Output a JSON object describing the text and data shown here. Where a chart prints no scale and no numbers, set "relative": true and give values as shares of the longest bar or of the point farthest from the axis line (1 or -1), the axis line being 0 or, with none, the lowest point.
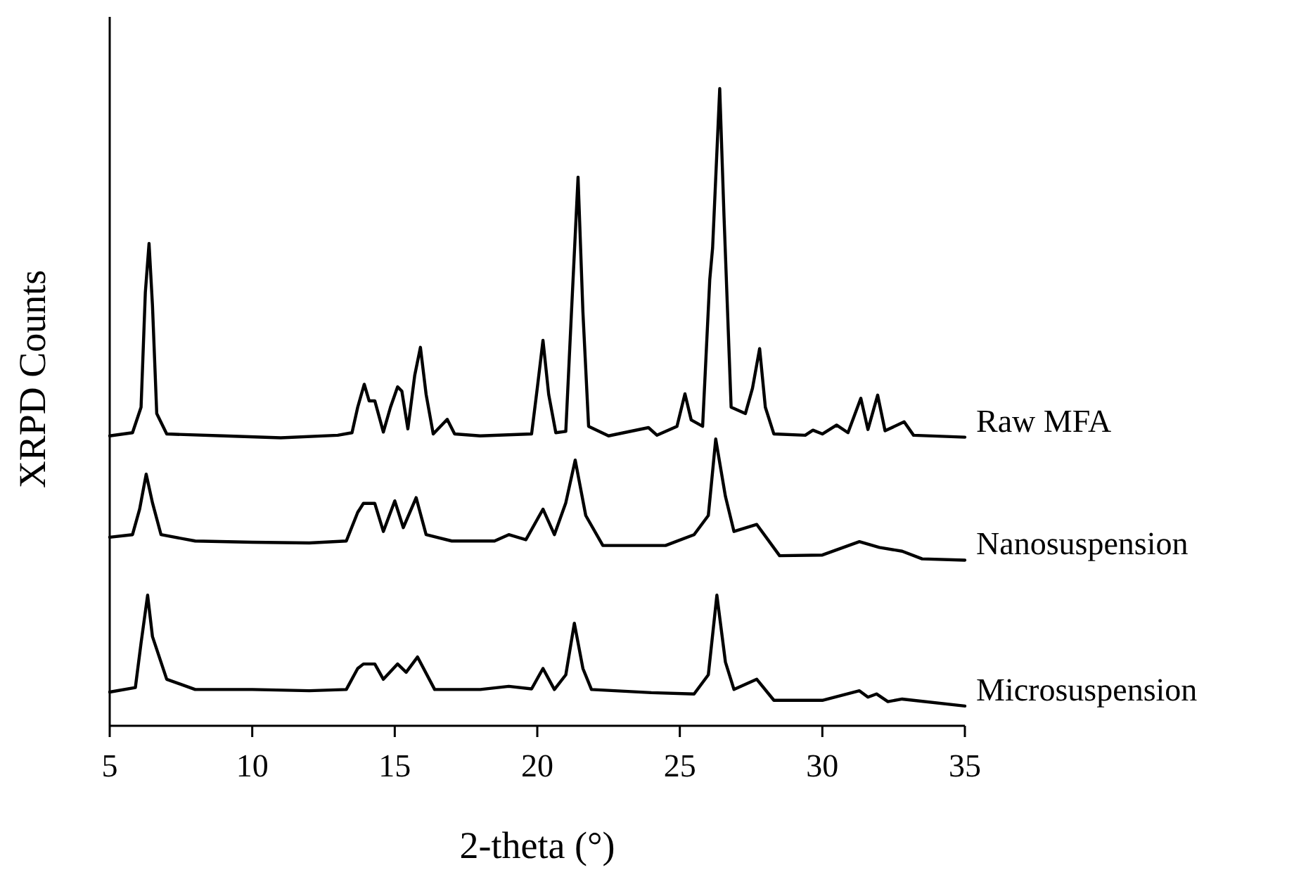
{
  "chart_data": {
    "type": "line",
    "relative": true,
    "xlabel": "2-theta (°)",
    "ylabel": "XRPD Counts",
    "xlim": [
      5,
      35
    ],
    "xticks": [
      5,
      10,
      15,
      20,
      25,
      30,
      35
    ],
    "tick_labels": "x",
    "grid": false,
    "marker": "none",
    "line_style": "solid",
    "series": [
      {
        "name": "Raw MFA",
        "color": "#000000",
        "x": [
          5,
          5.8,
          6.1,
          6.25,
          6.38,
          6.5,
          6.65,
          7,
          9,
          11,
          13,
          13.5,
          13.7,
          13.93,
          14.1,
          14.3,
          14.6,
          14.85,
          15.1,
          15.25,
          15.46,
          15.7,
          15.9,
          16.1,
          16.35,
          16.84,
          17.1,
          18,
          19.8,
          20.0,
          20.2,
          20.4,
          20.65,
          21.0,
          21.2,
          21.43,
          21.6,
          21.8,
          22.5,
          23.9,
          24.2,
          24.9,
          25.18,
          25.4,
          25.8,
          26.05,
          26.15,
          26.4,
          26.55,
          26.8,
          27.3,
          27.55,
          27.8,
          28.0,
          28.3,
          29.4,
          29.67,
          30.0,
          30.5,
          30.9,
          31.35,
          31.6,
          31.94,
          32.2,
          32.87,
          33.2,
          35
        ],
        "values": [
          0.455,
          0.46,
          0.5,
          0.68,
          0.757,
          0.66,
          0.49,
          0.458,
          0.455,
          0.452,
          0.456,
          0.46,
          0.5,
          0.536,
          0.51,
          0.51,
          0.461,
          0.5,
          0.532,
          0.525,
          0.466,
          0.55,
          0.594,
          0.52,
          0.458,
          0.481,
          0.458,
          0.455,
          0.458,
          0.53,
          0.605,
          0.52,
          0.46,
          0.462,
          0.65,
          0.861,
          0.65,
          0.47,
          0.455,
          0.468,
          0.456,
          0.47,
          0.521,
          0.48,
          0.47,
          0.7,
          0.75,
          1,
          0.8,
          0.5,
          0.49,
          0.53,
          0.592,
          0.5,
          0.458,
          0.456,
          0.464,
          0.458,
          0.472,
          0.46,
          0.514,
          0.465,
          0.519,
          0.463,
          0.477,
          0.456,
          0.453
        ]
      },
      {
        "name": "Nanosuspension",
        "color": "#000000",
        "x": [
          5,
          5.8,
          6.05,
          6.28,
          6.5,
          6.8,
          8,
          10,
          12,
          13.3,
          13.7,
          13.9,
          14.3,
          14.6,
          15.0,
          15.3,
          15.75,
          16.1,
          17,
          18.5,
          19,
          19.6,
          20.2,
          20.6,
          21.0,
          21.33,
          21.7,
          22.3,
          24.5,
          25.5,
          26.0,
          26.26,
          26.6,
          26.9,
          27.7,
          28.5,
          30,
          31.3,
          32,
          32.8,
          33.5,
          35
        ],
        "values": [
          0.296,
          0.3,
          0.34,
          0.395,
          0.35,
          0.3,
          0.29,
          0.288,
          0.287,
          0.29,
          0.335,
          0.349,
          0.349,
          0.305,
          0.353,
          0.311,
          0.358,
          0.3,
          0.29,
          0.29,
          0.3,
          0.292,
          0.34,
          0.3,
          0.35,
          0.417,
          0.33,
          0.283,
          0.283,
          0.3,
          0.33,
          0.45,
          0.36,
          0.305,
          0.316,
          0.267,
          0.268,
          0.289,
          0.28,
          0.274,
          0.262,
          0.26
        ]
      },
      {
        "name": "Microsuspension",
        "color": "#000000",
        "x": [
          5,
          5.9,
          6.1,
          6.33,
          6.5,
          7,
          8,
          10,
          12,
          13.3,
          13.7,
          13.9,
          14.3,
          14.6,
          15.1,
          15.4,
          15.8,
          16.4,
          18,
          19,
          19.8,
          20.2,
          20.6,
          21.0,
          21.3,
          21.6,
          21.9,
          24,
          25.5,
          26.0,
          26.3,
          26.6,
          26.9,
          27.7,
          28.3,
          30,
          31.3,
          31.6,
          31.9,
          32.3,
          32.8,
          35
        ],
        "values": [
          0.053,
          0.06,
          0.13,
          0.205,
          0.14,
          0.073,
          0.057,
          0.057,
          0.055,
          0.057,
          0.09,
          0.097,
          0.097,
          0.073,
          0.097,
          0.084,
          0.108,
          0.057,
          0.057,
          0.062,
          0.058,
          0.09,
          0.057,
          0.08,
          0.161,
          0.09,
          0.057,
          0.052,
          0.05,
          0.08,
          0.205,
          0.1,
          0.057,
          0.073,
          0.04,
          0.04,
          0.055,
          0.045,
          0.05,
          0.038,
          0.042,
          0.031
        ]
      }
    ]
  }
}
